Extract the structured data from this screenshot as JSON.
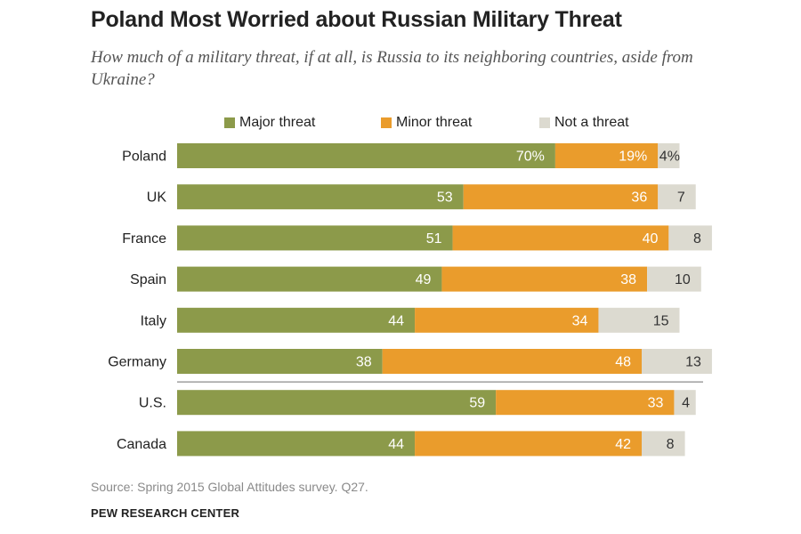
{
  "page": {
    "title": "Poland Most Worried about Russian Military Threat",
    "subtitle": "How much of a military threat, if at all, is Russia to its neighboring countries, aside from Ukraine?",
    "source": "Source: Spring 2015 Global Attitudes survey. Q27.",
    "credit": "PEW RESEARCH CENTER"
  },
  "chart_data": {
    "type": "bar",
    "orientation": "horizontal",
    "stacked": true,
    "title": "Poland Most Worried about Russian Military Threat",
    "subtitle": "How much of a military threat, if at all, is Russia to its neighboring countries, aside from Ukraine?",
    "xlabel": "",
    "ylabel": "",
    "xlim": [
      0,
      100
    ],
    "grid": false,
    "legend_position": "top",
    "categories": [
      "Poland",
      "UK",
      "France",
      "Spain",
      "Italy",
      "Germany",
      "U.S.",
      "Canada"
    ],
    "series": [
      {
        "name": "Major threat",
        "color": "#8c9a4a",
        "values": [
          70,
          53,
          51,
          49,
          44,
          38,
          59,
          44
        ],
        "labels": [
          "70%",
          "53",
          "51",
          "49",
          "44",
          "38",
          "59",
          "44"
        ]
      },
      {
        "name": "Minor threat",
        "color": "#ea9c2c",
        "values": [
          19,
          36,
          40,
          38,
          34,
          48,
          33,
          42
        ],
        "labels": [
          "19%",
          "36",
          "40",
          "38",
          "34",
          "48",
          "33",
          "42"
        ]
      },
      {
        "name": "Not a threat",
        "color": "#dcdad0",
        "values": [
          4,
          7,
          8,
          10,
          15,
          13,
          4,
          8
        ],
        "labels": [
          "4%",
          "7",
          "8",
          "10",
          "15",
          "13",
          "4",
          "8"
        ]
      }
    ],
    "divider_after": "Germany"
  }
}
